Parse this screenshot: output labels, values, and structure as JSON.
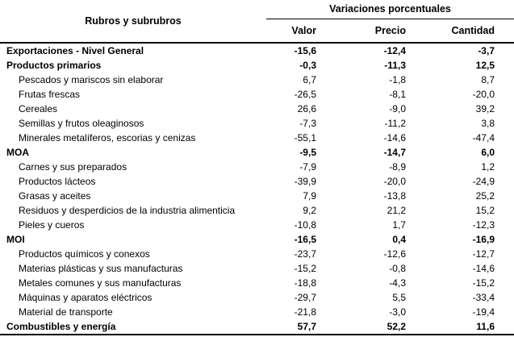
{
  "chart_data": {
    "type": "table",
    "row_header_label": "Rubros y subrubros",
    "column_group_label": "Variaciones porcentuales",
    "columns": [
      "Valor",
      "Precio",
      "Cantidad"
    ],
    "rows": [
      {
        "label": "Exportaciones - Nivel General",
        "bold": true,
        "values": [
          "-15,6",
          "-12,4",
          "-3,7"
        ]
      },
      {
        "label": "Productos primarios",
        "bold": true,
        "values": [
          "-0,3",
          "-11,3",
          "12,5"
        ]
      },
      {
        "label": "Pescados y mariscos sin elaborar",
        "bold": false,
        "values": [
          "6,7",
          "-1,8",
          "8,7"
        ]
      },
      {
        "label": "Frutas frescas",
        "bold": false,
        "values": [
          "-26,5",
          "-8,1",
          "-20,0"
        ]
      },
      {
        "label": "Cereales",
        "bold": false,
        "values": [
          "26,6",
          "-9,0",
          "39,2"
        ]
      },
      {
        "label": "Semillas y frutos oleaginosos",
        "bold": false,
        "values": [
          "-7,3",
          "-11,2",
          "3,8"
        ]
      },
      {
        "label": "Minerales metalíferos, escorias y cenizas",
        "bold": false,
        "values": [
          "-55,1",
          "-14,6",
          "-47,4"
        ]
      },
      {
        "label": "MOA",
        "bold": true,
        "values": [
          "-9,5",
          "-14,7",
          "6,0"
        ]
      },
      {
        "label": "Carnes y sus preparados",
        "bold": false,
        "values": [
          "-7,9",
          "-8,9",
          "1,2"
        ]
      },
      {
        "label": "Productos lácteos",
        "bold": false,
        "values": [
          "-39,9",
          "-20,0",
          "-24,9"
        ]
      },
      {
        "label": "Grasas y aceites",
        "bold": false,
        "values": [
          "7,9",
          "-13,8",
          "25,2"
        ]
      },
      {
        "label": "Residuos y desperdicios de la industria alimenticia",
        "bold": false,
        "values": [
          "9,2",
          "21,2",
          "15,2"
        ]
      },
      {
        "label": "Pieles y cueros",
        "bold": false,
        "values": [
          "-10,8",
          "1,7",
          "-12,3"
        ]
      },
      {
        "label": "MOI",
        "bold": true,
        "values": [
          "-16,5",
          "0,4",
          "-16,9"
        ]
      },
      {
        "label": "Productos químicos y conexos",
        "bold": false,
        "values": [
          "-23,7",
          "-12,6",
          "-12,7"
        ]
      },
      {
        "label": "Materias plásticas y sus manufacturas",
        "bold": false,
        "values": [
          "-15,2",
          "-0,8",
          "-14,6"
        ]
      },
      {
        "label": "Metales comunes y sus manufacturas",
        "bold": false,
        "values": [
          "-18,8",
          "-4,3",
          "-15,2"
        ]
      },
      {
        "label": "Máquinas y aparatos eléctricos",
        "bold": false,
        "values": [
          "-29,7",
          "5,5",
          "-33,4"
        ]
      },
      {
        "label": "Material de transporte",
        "bold": false,
        "values": [
          "-21,8",
          "-3,0",
          "-19,4"
        ]
      },
      {
        "label": "Combustibles y energía",
        "bold": true,
        "values": [
          "57,7",
          "52,2",
          "11,6"
        ]
      }
    ],
    "colors": {
      "text": "#000000",
      "background": "#ffffff",
      "rules": "#000000"
    }
  }
}
